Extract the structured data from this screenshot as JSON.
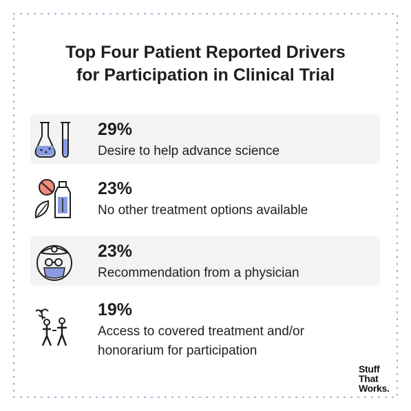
{
  "title": {
    "line1": "Top Four Patient Reported Drivers",
    "line2": "for Participation in Clinical Trial"
  },
  "chart_data": {
    "type": "table",
    "unit": "%",
    "items": [
      {
        "value": 29,
        "label": "29%",
        "description": "Desire to help advance science",
        "icon": "lab-flask-test-tube-icon"
      },
      {
        "value": 23,
        "label": "23%",
        "description": "No other treatment options available",
        "icon": "prohibited-medication-icon"
      },
      {
        "value": 23,
        "label": "23%",
        "description": "Recommendation from a physician",
        "icon": "doctor-face-icon"
      },
      {
        "value": 19,
        "label": "19%",
        "description": "Access to covered treatment and/or honorarium for participation",
        "icon": "people-payment-icon"
      }
    ]
  },
  "colors": {
    "accent": "#8b9be0",
    "row_shade": "#f3f3f3",
    "text": "#1e1e1e",
    "dots": "#9aa3c9"
  },
  "logo": {
    "line1": "Stuff",
    "line2": "That",
    "line3": "Works."
  }
}
